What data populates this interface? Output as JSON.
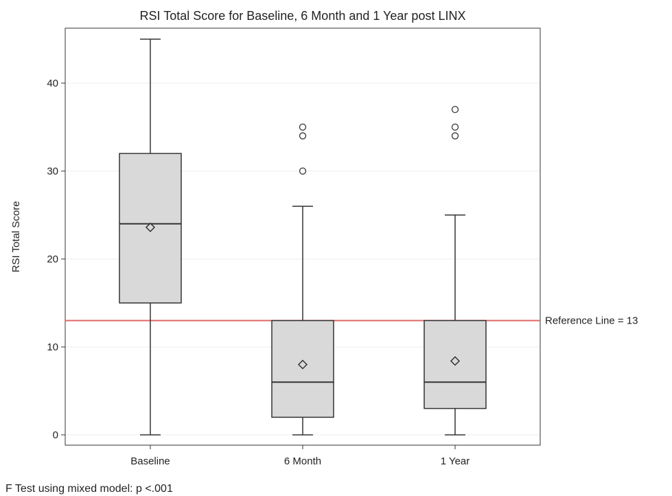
{
  "chart_data": {
    "type": "boxplot",
    "title": "RSI Total Score for Baseline, 6 Month and 1 Year post LINX",
    "xlabel": "",
    "ylabel": "RSI Total Score",
    "ylim": [
      -1,
      46
    ],
    "yticks": [
      0,
      10,
      20,
      30,
      40
    ],
    "grid": true,
    "categories": [
      "Baseline",
      "6 Month",
      "1 Year"
    ],
    "boxes": [
      {
        "category": "Baseline",
        "min": 0,
        "q1": 15,
        "median": 24,
        "q3": 32,
        "max": 45,
        "mean": 23.6,
        "outliers": []
      },
      {
        "category": "6 Month",
        "min": 0,
        "q1": 2,
        "median": 6,
        "q3": 13,
        "max": 26,
        "mean": 8,
        "outliers": [
          30,
          34,
          35
        ]
      },
      {
        "category": "1 Year",
        "min": 0,
        "q1": 3,
        "median": 6,
        "q3": 13,
        "max": 25,
        "mean": 8.4,
        "outliers": [
          34,
          35,
          37
        ]
      }
    ],
    "reference_line": {
      "value": 13,
      "label": "Reference Line = 13",
      "color": "#e06666"
    },
    "colors": {
      "box_fill": "#d9d9d9",
      "stroke": "#333333",
      "grid": "#eeeeee"
    },
    "footnote": "F Test using mixed model: p <.001"
  }
}
